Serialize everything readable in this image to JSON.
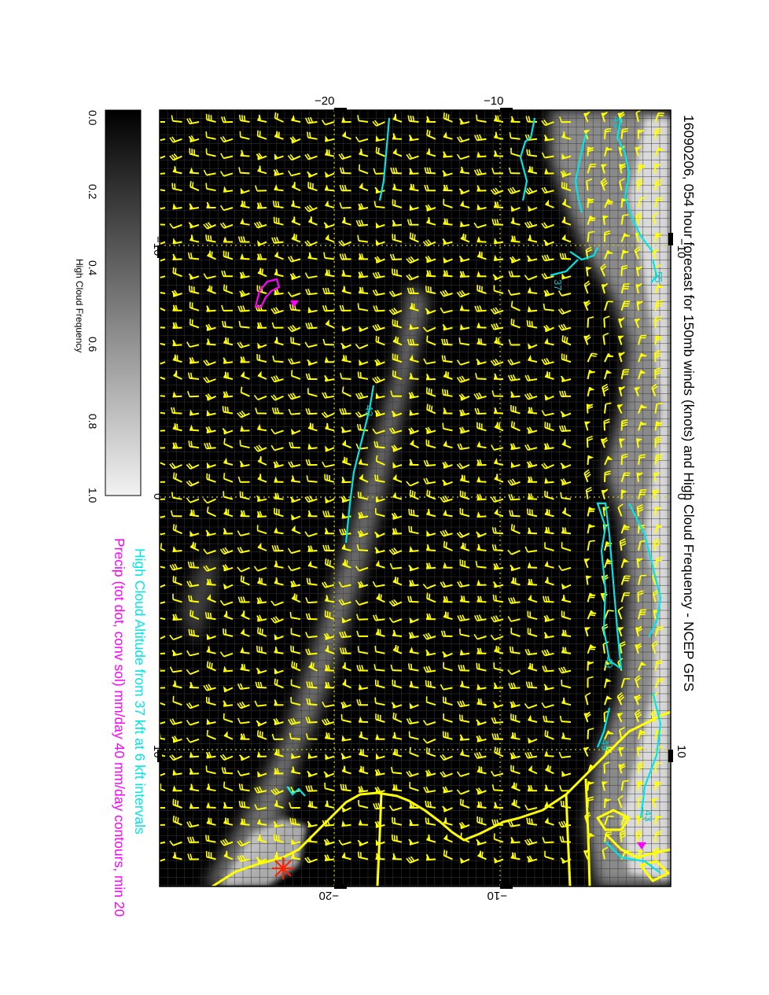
{
  "map": {
    "title": "16090206, 054 hour forecast for 150mb winds (knots) and High Cloud Frequency - NCEP GFS",
    "caption_altitude": "High Cloud Altitude from 37 kft at 6 kft intervals",
    "caption_precip": "Precip (tot dot, conv sol) mm/day 40 mm/day contours, min 20",
    "colors": {
      "background": "#000000",
      "barbs": "#ffff00",
      "coast": "#ffff00",
      "altitude_contour": "#00e5e5",
      "precip_contour": "#ff00ff",
      "grid": "#cccc00",
      "marker": "#ff2200"
    },
    "lat_labels_top": [
      "−10",
      "0",
      "10"
    ],
    "lat_labels_bottom": [
      "−10",
      "0",
      "10"
    ],
    "lon_labels_left": [
      "−20",
      "−10"
    ],
    "lon_labels_right": [
      "−20",
      "−10"
    ],
    "contour_labels": [
      "43",
      "37",
      "49",
      "49",
      "43",
      "43",
      "55"
    ]
  },
  "colorbar": {
    "title": "High Cloud Frequency",
    "ticks": [
      "0.0",
      "0.2",
      "0.4",
      "0.6",
      "0.8",
      "1.0"
    ],
    "range": [
      0.0,
      1.0
    ]
  }
}
